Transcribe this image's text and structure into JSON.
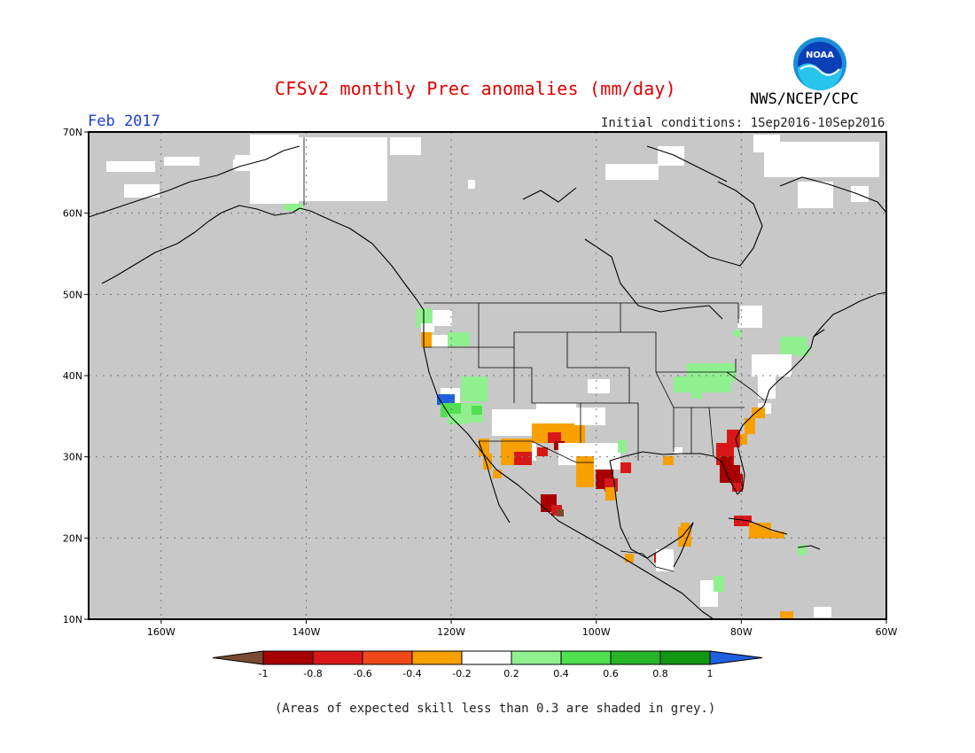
{
  "header": {
    "title": "CFSv2 monthly Prec anomalies (mm/day)",
    "agency": "NWS/NCEP/CPC",
    "logo_text": "NOAA",
    "period": "Feb 2017",
    "initial_conditions": "Initial conditions: 1Sep2016-10Sep2016"
  },
  "map": {
    "region": "North America",
    "lat_range": [
      10,
      70
    ],
    "lon_range": [
      -170,
      -60
    ],
    "lat_ticks": [
      "10N",
      "20N",
      "30N",
      "40N",
      "50N",
      "60N",
      "70N"
    ],
    "lon_ticks": [
      "160W",
      "140W",
      "120W",
      "100W",
      "80W",
      "60W"
    ],
    "background_color": "#c8c8c8",
    "gridlines": true
  },
  "colorbar": {
    "tick_labels": [
      "-1",
      "-0.8",
      "-0.6",
      "-0.4",
      "-0.2",
      "0.2",
      "0.4",
      "0.6",
      "0.8",
      "1"
    ],
    "colors": [
      "#7a4a32",
      "#a80000",
      "#d81818",
      "#f04818",
      "#f7a000",
      "#ffffff",
      "#90f090",
      "#50e050",
      "#28b428",
      "#109610",
      "#2060e0"
    ]
  },
  "footnote": "(Areas of expected skill less than 0.3 are shaded in grey.)"
}
